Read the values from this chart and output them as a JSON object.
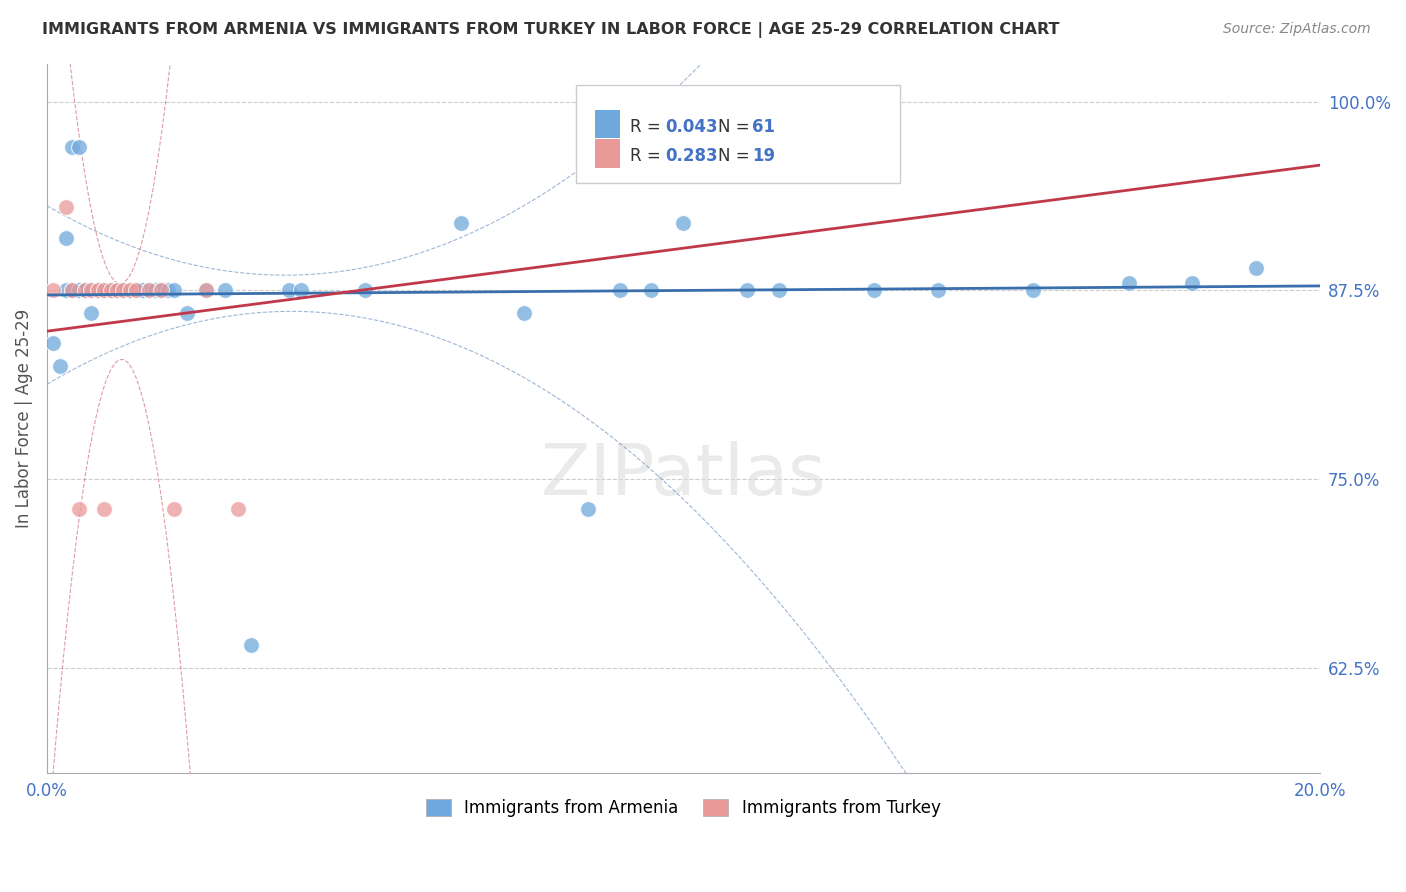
{
  "title": "IMMIGRANTS FROM ARMENIA VS IMMIGRANTS FROM TURKEY IN LABOR FORCE | AGE 25-29 CORRELATION CHART",
  "source": "Source: ZipAtlas.com",
  "ylabel": "In Labor Force | Age 25-29",
  "xlim": [
    0.0,
    0.2
  ],
  "ylim": [
    0.555,
    1.025
  ],
  "xticks": [
    0.0,
    0.05,
    0.1,
    0.15,
    0.2
  ],
  "xtick_labels": [
    "0.0%",
    "",
    "",
    "",
    "20.0%"
  ],
  "ytick_labels_right": [
    "62.5%",
    "75.0%",
    "87.5%",
    "100.0%"
  ],
  "yticks_right": [
    0.625,
    0.75,
    0.875,
    1.0
  ],
  "R_armenia": 0.043,
  "N_armenia": 61,
  "R_turkey": 0.283,
  "N_turkey": 19,
  "color_armenia": "#6fa8dc",
  "color_turkey": "#ea9999",
  "line_color_armenia": "#3a6fad",
  "line_color_turkey": "#c0394a",
  "legend_label_armenia": "Immigrants from Armenia",
  "legend_label_turkey": "Immigrants from Turkey",
  "armenia_x": [
    0.001,
    0.002,
    0.003,
    0.003,
    0.004,
    0.004,
    0.005,
    0.005,
    0.005,
    0.006,
    0.006,
    0.006,
    0.007,
    0.007,
    0.007,
    0.007,
    0.008,
    0.008,
    0.008,
    0.009,
    0.009,
    0.009,
    0.01,
    0.01,
    0.01,
    0.011,
    0.011,
    0.012,
    0.012,
    0.013,
    0.013,
    0.014,
    0.014,
    0.015,
    0.015,
    0.016,
    0.017,
    0.018,
    0.019,
    0.02,
    0.022,
    0.025,
    0.028,
    0.032,
    0.038,
    0.04,
    0.05,
    0.065,
    0.075,
    0.085,
    0.09,
    0.095,
    0.1,
    0.11,
    0.115,
    0.13,
    0.14,
    0.155,
    0.17,
    0.18,
    0.19
  ],
  "armenia_y": [
    0.84,
    0.825,
    0.875,
    0.91,
    0.875,
    0.97,
    0.875,
    0.875,
    0.97,
    0.875,
    0.875,
    0.875,
    0.875,
    0.875,
    0.86,
    0.875,
    0.875,
    0.875,
    0.875,
    0.875,
    0.875,
    0.875,
    0.875,
    0.875,
    0.875,
    0.875,
    0.875,
    0.875,
    0.875,
    0.875,
    0.875,
    0.875,
    0.875,
    0.875,
    0.875,
    0.875,
    0.875,
    0.875,
    0.875,
    0.875,
    0.86,
    0.875,
    0.875,
    0.64,
    0.875,
    0.875,
    0.875,
    0.92,
    0.86,
    0.73,
    0.875,
    0.875,
    0.92,
    0.875,
    0.875,
    0.875,
    0.875,
    0.875,
    0.88,
    0.88,
    0.89
  ],
  "turkey_x": [
    0.001,
    0.003,
    0.004,
    0.005,
    0.006,
    0.007,
    0.008,
    0.009,
    0.009,
    0.01,
    0.011,
    0.012,
    0.013,
    0.014,
    0.016,
    0.018,
    0.02,
    0.025,
    0.03
  ],
  "turkey_y": [
    0.875,
    0.93,
    0.875,
    0.73,
    0.875,
    0.875,
    0.875,
    0.875,
    0.73,
    0.875,
    0.875,
    0.875,
    0.875,
    0.875,
    0.875,
    0.875,
    0.73,
    0.875,
    0.73
  ]
}
